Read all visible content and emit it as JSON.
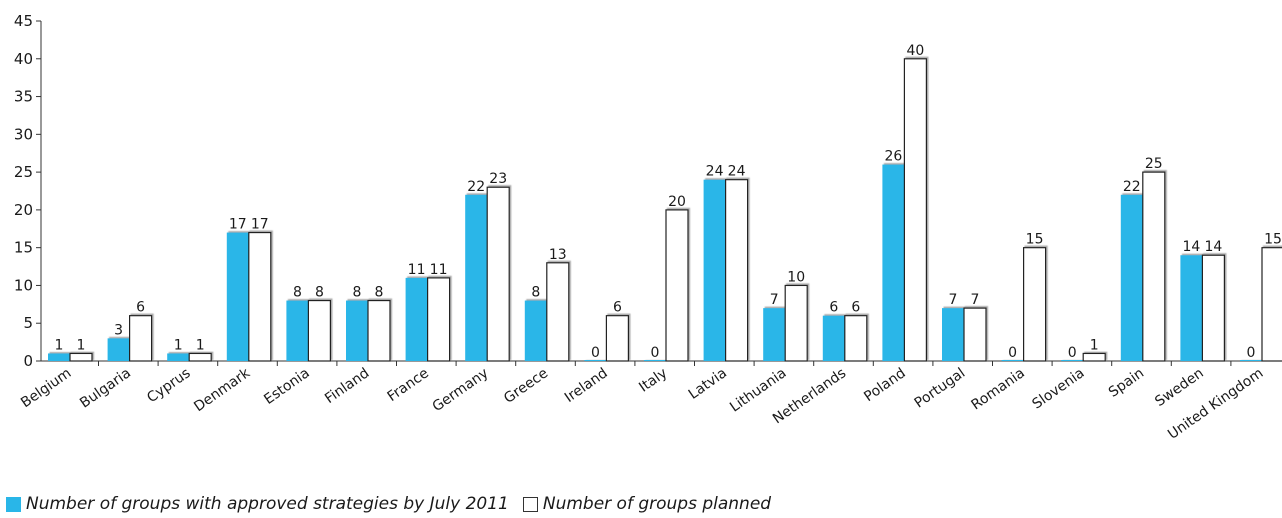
{
  "chart_data": {
    "type": "bar",
    "categories": [
      "Belgium",
      "Bulgaria",
      "Cyprus",
      "Denmark",
      "Estonia",
      "Finland",
      "France",
      "Germany",
      "Greece",
      "Ireland",
      "Italy",
      "Latvia",
      "Lithuania",
      "Netherlands",
      "Poland",
      "Portugal",
      "Romania",
      "Slovenia",
      "Spain",
      "Sweden",
      "United Kingdom"
    ],
    "series": [
      {
        "name": "Number of groups with approved strategies by July 2011",
        "color": "#29b6e8",
        "values": [
          1,
          3,
          1,
          17,
          8,
          8,
          11,
          22,
          8,
          0,
          0,
          24,
          7,
          6,
          26,
          7,
          0,
          0,
          22,
          14,
          0
        ]
      },
      {
        "name": "Number of groups planned",
        "color": "#ffffff",
        "values": [
          1,
          6,
          1,
          17,
          8,
          8,
          11,
          23,
          13,
          6,
          20,
          24,
          10,
          6,
          40,
          7,
          15,
          1,
          25,
          14,
          15
        ]
      }
    ],
    "yticks": [
      "0",
      "5",
      "10",
      "15",
      "20",
      "25",
      "30",
      "35",
      "40",
      "45"
    ],
    "ylim": [
      0,
      45
    ],
    "grid": false,
    "legend_position": "bottom-left",
    "title": "",
    "xlabel": "",
    "ylabel": ""
  }
}
